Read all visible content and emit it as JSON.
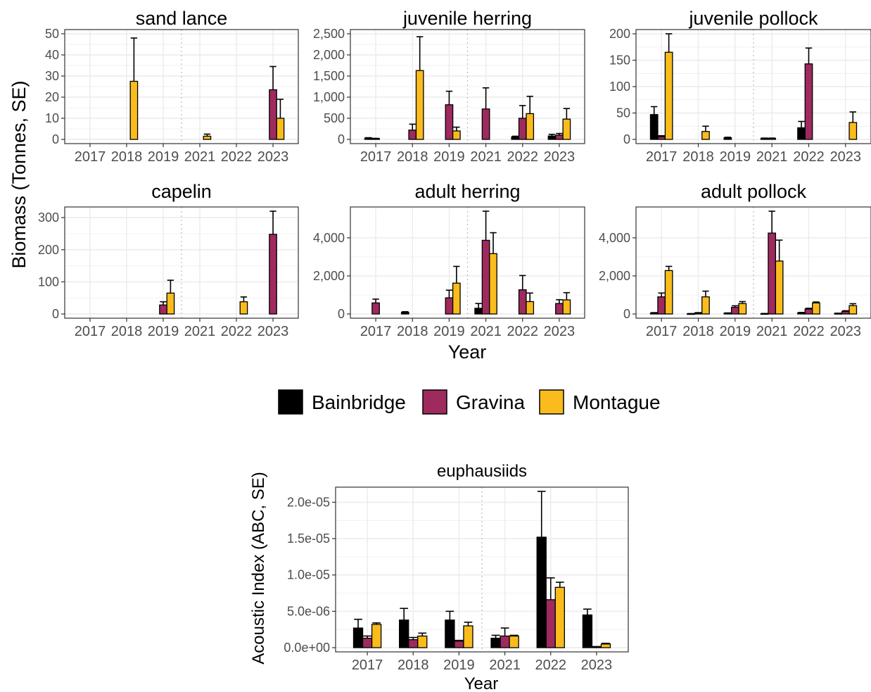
{
  "colors": {
    "Bainbridge": "#000000",
    "Gravina": "#9E2A5E",
    "Montague": "#F9BC1C",
    "grid": "#EBEBEB",
    "axis_text": "#4D4D4D",
    "divider": "#BFBFBF"
  },
  "labels": {
    "biomass_ylabel": "Biomass (Tonnes, SE)",
    "acoustic_ylabel": "Acoustic Index (ABC, SE)",
    "xlabel_top": "Year",
    "xlabel_bottom": "Year"
  },
  "legend": {
    "items": [
      "Bainbridge",
      "Gravina",
      "Montague"
    ],
    "position": "center, between the biomass panels and the euphausiids panel"
  },
  "chart_data": [
    {
      "type": "bar",
      "title": "sand lance",
      "categories": [
        "2017",
        "2018",
        "2019",
        "2021",
        "2022",
        "2023"
      ],
      "ylim": [
        0,
        50
      ],
      "yticks": [
        0,
        10,
        20,
        30,
        40,
        50
      ],
      "ytick_labels": [
        "0",
        "10",
        "20",
        "30",
        "40",
        "50"
      ],
      "grid": true,
      "divider_after": "2019",
      "series": [
        {
          "name": "Bainbridge",
          "values": [
            null,
            null,
            null,
            null,
            null,
            null
          ],
          "errors": [
            null,
            null,
            null,
            null,
            null,
            null
          ]
        },
        {
          "name": "Gravina",
          "values": [
            null,
            null,
            null,
            null,
            null,
            23.5
          ],
          "errors": [
            null,
            null,
            null,
            null,
            null,
            11
          ]
        },
        {
          "name": "Montague",
          "values": [
            null,
            27.5,
            null,
            1.5,
            null,
            10
          ],
          "errors": [
            null,
            20.5,
            null,
            1,
            null,
            9
          ]
        }
      ]
    },
    {
      "type": "bar",
      "title": "juvenile herring",
      "categories": [
        "2017",
        "2018",
        "2019",
        "2021",
        "2022",
        "2023"
      ],
      "ylim": [
        0,
        2500
      ],
      "yticks": [
        0,
        500,
        1000,
        1500,
        2000,
        2500
      ],
      "ytick_labels": [
        "0",
        "500",
        "1,000",
        "1,500",
        "2,000",
        "2,500"
      ],
      "grid": true,
      "divider_after": "2019",
      "series": [
        {
          "name": "Bainbridge",
          "values": [
            30,
            null,
            null,
            null,
            60,
            80
          ],
          "errors": [
            10,
            null,
            null,
            null,
            15,
            40
          ]
        },
        {
          "name": "Gravina",
          "values": [
            20,
            220,
            820,
            720,
            500,
            100
          ],
          "errors": [
            5,
            140,
            320,
            500,
            300,
            40
          ]
        },
        {
          "name": "Montague",
          "values": [
            null,
            1630,
            200,
            null,
            610,
            480
          ],
          "errors": [
            null,
            800,
            90,
            null,
            410,
            250
          ]
        }
      ]
    },
    {
      "type": "bar",
      "title": "juvenile pollock",
      "categories": [
        "2017",
        "2018",
        "2019",
        "2021",
        "2022",
        "2023"
      ],
      "ylim": [
        0,
        200
      ],
      "yticks": [
        0,
        50,
        100,
        150,
        200
      ],
      "ytick_labels": [
        "0",
        "50",
        "100",
        "150",
        "200"
      ],
      "grid": true,
      "divider_after": "2019",
      "series": [
        {
          "name": "Bainbridge",
          "values": [
            47,
            null,
            3,
            2,
            22,
            null
          ],
          "errors": [
            15,
            null,
            1,
            0.5,
            12,
            null
          ]
        },
        {
          "name": "Gravina",
          "values": [
            5,
            null,
            null,
            2,
            143,
            null
          ],
          "errors": [
            2,
            null,
            null,
            0.5,
            30,
            null
          ]
        },
        {
          "name": "Montague",
          "values": [
            165,
            15,
            null,
            null,
            null,
            32
          ],
          "errors": [
            40,
            10,
            null,
            null,
            null,
            20
          ]
        }
      ]
    },
    {
      "type": "bar",
      "title": "capelin",
      "categories": [
        "2017",
        "2018",
        "2019",
        "2021",
        "2022",
        "2023"
      ],
      "ylim": [
        0,
        320
      ],
      "yticks": [
        0,
        100,
        200,
        300
      ],
      "ytick_labels": [
        "0",
        "100",
        "200",
        "300"
      ],
      "grid": true,
      "divider_after": "2019",
      "series": [
        {
          "name": "Bainbridge",
          "values": [
            null,
            null,
            null,
            null,
            null,
            null
          ],
          "errors": [
            null,
            null,
            null,
            null,
            null,
            null
          ]
        },
        {
          "name": "Gravina",
          "values": [
            null,
            null,
            28,
            null,
            null,
            248
          ],
          "errors": [
            null,
            null,
            10,
            null,
            null,
            72
          ]
        },
        {
          "name": "Montague",
          "values": [
            null,
            null,
            65,
            null,
            38,
            null
          ],
          "errors": [
            null,
            null,
            40,
            null,
            15,
            null
          ]
        }
      ]
    },
    {
      "type": "bar",
      "title": "adult herring",
      "categories": [
        "2017",
        "2018",
        "2019",
        "2021",
        "2022",
        "2023"
      ],
      "ylim": [
        0,
        5400
      ],
      "yticks": [
        0,
        2000,
        4000
      ],
      "ytick_labels": [
        "0",
        "2,000",
        "4,000"
      ],
      "grid": true,
      "divider_after": "2019",
      "series": [
        {
          "name": "Bainbridge",
          "values": [
            null,
            80,
            null,
            300,
            null,
            null
          ],
          "errors": [
            null,
            40,
            null,
            250,
            null,
            null
          ]
        },
        {
          "name": "Gravina",
          "values": [
            580,
            null,
            850,
            3870,
            1270,
            550
          ],
          "errors": [
            200,
            null,
            400,
            1550,
            750,
            200
          ]
        },
        {
          "name": "Montague",
          "values": [
            null,
            null,
            1620,
            3170,
            650,
            740
          ],
          "errors": [
            null,
            null,
            880,
            1100,
            450,
            380
          ]
        }
      ]
    },
    {
      "type": "bar",
      "title": "adult pollock",
      "categories": [
        "2017",
        "2018",
        "2019",
        "2021",
        "2022",
        "2023"
      ],
      "ylim": [
        0,
        5400
      ],
      "yticks": [
        0,
        2000,
        4000
      ],
      "ytick_labels": [
        "0",
        "2,000",
        "4,000"
      ],
      "grid": true,
      "divider_after": "2019",
      "series": [
        {
          "name": "Bainbridge",
          "values": [
            50,
            15,
            40,
            20,
            60,
            30
          ],
          "errors": [
            20,
            5,
            15,
            5,
            20,
            10
          ]
        },
        {
          "name": "Gravina",
          "values": [
            900,
            50,
            350,
            4250,
            260,
            130
          ],
          "errors": [
            200,
            20,
            80,
            1250,
            40,
            40
          ]
        },
        {
          "name": "Montague",
          "values": [
            2280,
            900,
            550,
            2780,
            580,
            440
          ],
          "errors": [
            220,
            300,
            100,
            1100,
            50,
            100
          ]
        }
      ]
    },
    {
      "type": "bar",
      "title": "euphausiids",
      "categories": [
        "2017",
        "2018",
        "2019",
        "2021",
        "2022",
        "2023"
      ],
      "ylim": [
        0,
        2.15e-05
      ],
      "yticks": [
        0,
        5e-06,
        1e-05,
        1.5e-05,
        2e-05
      ],
      "ytick_labels": [
        "0.0e+00",
        "5.0e-06",
        "1.0e-05",
        "1.5e-05",
        "2.0e-05"
      ],
      "grid": true,
      "divider_after": "2019",
      "series": [
        {
          "name": "Bainbridge",
          "values": [
            2.7e-06,
            3.8e-06,
            3.8e-06,
            1.3e-06,
            1.52e-05,
            4.5e-06
          ],
          "errors": [
            1.2e-06,
            1.6e-06,
            1.2e-06,
            4e-07,
            6.6e-06,
            8e-07
          ]
        },
        {
          "name": "Gravina",
          "values": [
            1.3e-06,
            1.1e-06,
            9e-07,
            1.6e-06,
            6.6e-06,
            1e-07
          ],
          "errors": [
            3e-07,
            3e-07,
            1e-07,
            1.1e-06,
            3e-06,
            5e-08
          ]
        },
        {
          "name": "Montague",
          "values": [
            3.2e-06,
            1.6e-06,
            3e-06,
            1.6e-06,
            8.3e-06,
            5e-07
          ],
          "errors": [
            2e-07,
            4e-07,
            5e-07,
            1e-07,
            7e-07,
            1e-07
          ]
        }
      ]
    }
  ]
}
